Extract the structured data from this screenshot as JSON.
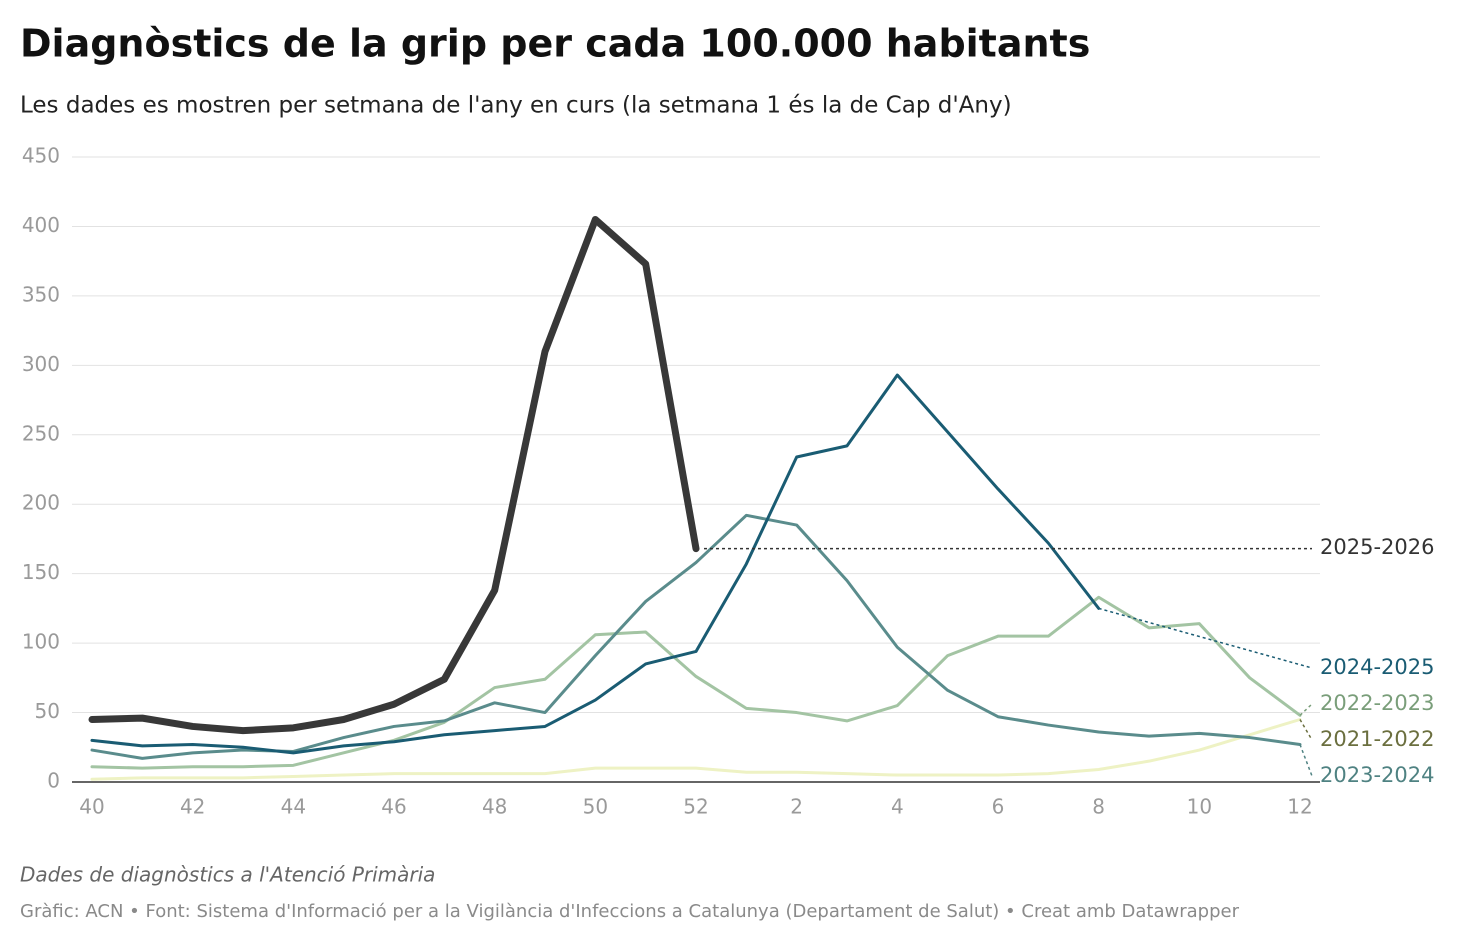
{
  "chart_data": {
    "type": "line",
    "title": "Diagnòstics de la grip per cada 100.000 habitants",
    "subtitle": "Les dades es mostren per setmana de l'any en curs (la setmana 1 és la de Cap d'Any)",
    "notes": "Dades de diagnòstics a l'Atenció Primària",
    "source": "Gràfic: ACN • Font: Sistema d'Informació per a la Vigilància d'Infeccions a Catalunya (Departament de Salut) • Creat amb Datawrapper",
    "categories": [
      "40",
      null,
      "42",
      null,
      "44",
      null,
      "46",
      null,
      "48",
      null,
      "50",
      null,
      "52",
      null,
      "2",
      null,
      "4",
      null,
      "6",
      null,
      "8",
      null,
      "10",
      null,
      "12"
    ],
    "ylim": [
      0,
      450
    ],
    "yticks": [
      0,
      50,
      100,
      150,
      200,
      250,
      300,
      350,
      400,
      450
    ],
    "grid": true,
    "series": [
      {
        "name": "2021-2022",
        "color": "#eef2c4",
        "label_color": "#6b6f3f",
        "values": [
          2,
          3,
          3,
          3,
          4,
          5,
          6,
          6,
          6,
          6,
          10,
          10,
          10,
          7,
          7,
          6,
          5,
          5,
          5,
          6,
          9,
          15,
          23,
          34,
          45
        ]
      },
      {
        "name": "2022-2023",
        "color": "#a3c4a3",
        "label_color": "#7a9e7a",
        "values": [
          11,
          10,
          11,
          11,
          12,
          21,
          30,
          43,
          68,
          74,
          106,
          108,
          76,
          53,
          50,
          44,
          55,
          91,
          105,
          105,
          133,
          111,
          114,
          75,
          48
        ]
      },
      {
        "name": "2023-2024",
        "color": "#5a8c8c",
        "label_color": "#4f8282",
        "values": [
          23,
          17,
          21,
          23,
          22,
          32,
          40,
          44,
          57,
          50,
          91,
          130,
          158,
          192,
          185,
          145,
          97,
          66,
          47,
          41,
          36,
          33,
          35,
          32,
          27
        ]
      },
      {
        "name": "2024-2025",
        "color": "#1a5c73",
        "label_color": "#1a5c73",
        "values": [
          30,
          26,
          27,
          25,
          21,
          26,
          29,
          34,
          37,
          40,
          59,
          85,
          94,
          157,
          234,
          242,
          293,
          252,
          211,
          172,
          125,
          null,
          null,
          null,
          null
        ]
      },
      {
        "name": "2025-2026",
        "color": "#383838",
        "label_color": "#333333",
        "values": [
          45,
          46,
          40,
          37,
          39,
          45,
          56,
          74,
          138,
          310,
          405,
          373,
          168,
          null,
          null,
          null,
          null,
          null,
          null,
          null,
          null,
          null,
          null,
          null,
          null
        ]
      }
    ]
  }
}
